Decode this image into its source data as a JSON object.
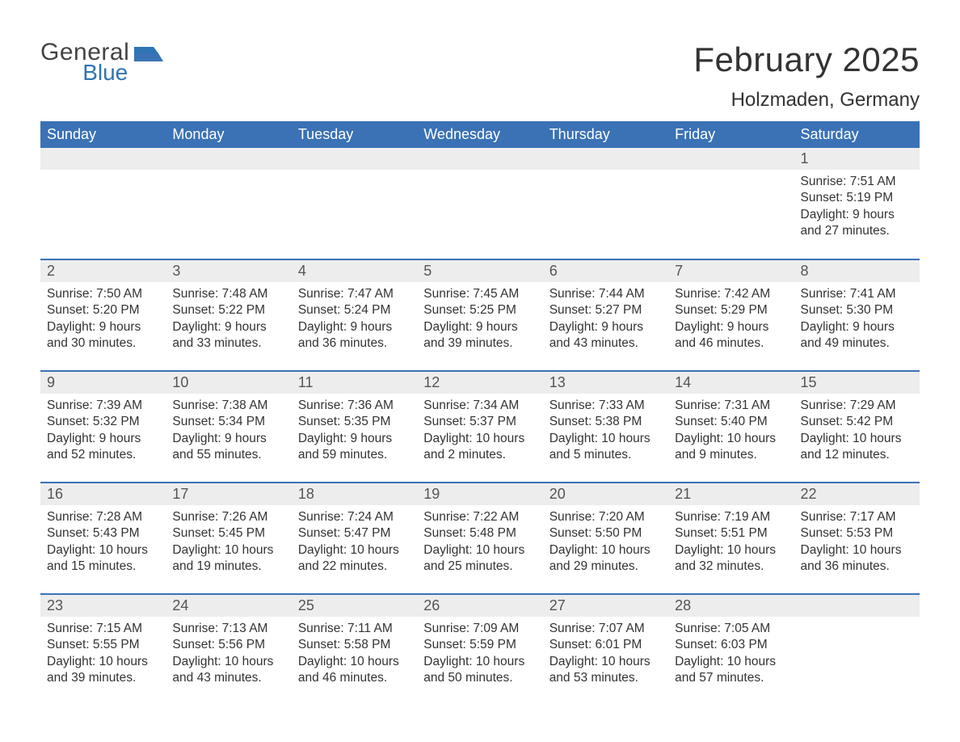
{
  "brand": {
    "word1": "General",
    "word2": "Blue",
    "color1": "#444444",
    "color2": "#2f74b5"
  },
  "title": "February 2025",
  "location": "Holzmaden, Germany",
  "colors": {
    "header_bg": "#3a72b5",
    "header_fg": "#ffffff",
    "daynum_bg": "#ededed",
    "daynum_fg": "#555555",
    "rule": "#3a72b5",
    "body_text": "#333333",
    "page_bg": "#ffffff"
  },
  "typography": {
    "title_fontsize": 42,
    "location_fontsize": 24,
    "weekday_fontsize": 18,
    "daynum_fontsize": 18,
    "body_fontsize": 15.5
  },
  "weekdays": [
    "Sunday",
    "Monday",
    "Tuesday",
    "Wednesday",
    "Thursday",
    "Friday",
    "Saturday"
  ],
  "weeks": [
    [
      null,
      null,
      null,
      null,
      null,
      null,
      {
        "n": "1",
        "lines": [
          "Sunrise: 7:51 AM",
          "Sunset: 5:19 PM",
          "Daylight: 9 hours",
          "and 27 minutes."
        ]
      }
    ],
    [
      {
        "n": "2",
        "lines": [
          "Sunrise: 7:50 AM",
          "Sunset: 5:20 PM",
          "Daylight: 9 hours",
          "and 30 minutes."
        ]
      },
      {
        "n": "3",
        "lines": [
          "Sunrise: 7:48 AM",
          "Sunset: 5:22 PM",
          "Daylight: 9 hours",
          "and 33 minutes."
        ]
      },
      {
        "n": "4",
        "lines": [
          "Sunrise: 7:47 AM",
          "Sunset: 5:24 PM",
          "Daylight: 9 hours",
          "and 36 minutes."
        ]
      },
      {
        "n": "5",
        "lines": [
          "Sunrise: 7:45 AM",
          "Sunset: 5:25 PM",
          "Daylight: 9 hours",
          "and 39 minutes."
        ]
      },
      {
        "n": "6",
        "lines": [
          "Sunrise: 7:44 AM",
          "Sunset: 5:27 PM",
          "Daylight: 9 hours",
          "and 43 minutes."
        ]
      },
      {
        "n": "7",
        "lines": [
          "Sunrise: 7:42 AM",
          "Sunset: 5:29 PM",
          "Daylight: 9 hours",
          "and 46 minutes."
        ]
      },
      {
        "n": "8",
        "lines": [
          "Sunrise: 7:41 AM",
          "Sunset: 5:30 PM",
          "Daylight: 9 hours",
          "and 49 minutes."
        ]
      }
    ],
    [
      {
        "n": "9",
        "lines": [
          "Sunrise: 7:39 AM",
          "Sunset: 5:32 PM",
          "Daylight: 9 hours",
          "and 52 minutes."
        ]
      },
      {
        "n": "10",
        "lines": [
          "Sunrise: 7:38 AM",
          "Sunset: 5:34 PM",
          "Daylight: 9 hours",
          "and 55 minutes."
        ]
      },
      {
        "n": "11",
        "lines": [
          "Sunrise: 7:36 AM",
          "Sunset: 5:35 PM",
          "Daylight: 9 hours",
          "and 59 minutes."
        ]
      },
      {
        "n": "12",
        "lines": [
          "Sunrise: 7:34 AM",
          "Sunset: 5:37 PM",
          "Daylight: 10 hours",
          "and 2 minutes."
        ]
      },
      {
        "n": "13",
        "lines": [
          "Sunrise: 7:33 AM",
          "Sunset: 5:38 PM",
          "Daylight: 10 hours",
          "and 5 minutes."
        ]
      },
      {
        "n": "14",
        "lines": [
          "Sunrise: 7:31 AM",
          "Sunset: 5:40 PM",
          "Daylight: 10 hours",
          "and 9 minutes."
        ]
      },
      {
        "n": "15",
        "lines": [
          "Sunrise: 7:29 AM",
          "Sunset: 5:42 PM",
          "Daylight: 10 hours",
          "and 12 minutes."
        ]
      }
    ],
    [
      {
        "n": "16",
        "lines": [
          "Sunrise: 7:28 AM",
          "Sunset: 5:43 PM",
          "Daylight: 10 hours",
          "and 15 minutes."
        ]
      },
      {
        "n": "17",
        "lines": [
          "Sunrise: 7:26 AM",
          "Sunset: 5:45 PM",
          "Daylight: 10 hours",
          "and 19 minutes."
        ]
      },
      {
        "n": "18",
        "lines": [
          "Sunrise: 7:24 AM",
          "Sunset: 5:47 PM",
          "Daylight: 10 hours",
          "and 22 minutes."
        ]
      },
      {
        "n": "19",
        "lines": [
          "Sunrise: 7:22 AM",
          "Sunset: 5:48 PM",
          "Daylight: 10 hours",
          "and 25 minutes."
        ]
      },
      {
        "n": "20",
        "lines": [
          "Sunrise: 7:20 AM",
          "Sunset: 5:50 PM",
          "Daylight: 10 hours",
          "and 29 minutes."
        ]
      },
      {
        "n": "21",
        "lines": [
          "Sunrise: 7:19 AM",
          "Sunset: 5:51 PM",
          "Daylight: 10 hours",
          "and 32 minutes."
        ]
      },
      {
        "n": "22",
        "lines": [
          "Sunrise: 7:17 AM",
          "Sunset: 5:53 PM",
          "Daylight: 10 hours",
          "and 36 minutes."
        ]
      }
    ],
    [
      {
        "n": "23",
        "lines": [
          "Sunrise: 7:15 AM",
          "Sunset: 5:55 PM",
          "Daylight: 10 hours",
          "and 39 minutes."
        ]
      },
      {
        "n": "24",
        "lines": [
          "Sunrise: 7:13 AM",
          "Sunset: 5:56 PM",
          "Daylight: 10 hours",
          "and 43 minutes."
        ]
      },
      {
        "n": "25",
        "lines": [
          "Sunrise: 7:11 AM",
          "Sunset: 5:58 PM",
          "Daylight: 10 hours",
          "and 46 minutes."
        ]
      },
      {
        "n": "26",
        "lines": [
          "Sunrise: 7:09 AM",
          "Sunset: 5:59 PM",
          "Daylight: 10 hours",
          "and 50 minutes."
        ]
      },
      {
        "n": "27",
        "lines": [
          "Sunrise: 7:07 AM",
          "Sunset: 6:01 PM",
          "Daylight: 10 hours",
          "and 53 minutes."
        ]
      },
      {
        "n": "28",
        "lines": [
          "Sunrise: 7:05 AM",
          "Sunset: 6:03 PM",
          "Daylight: 10 hours",
          "and 57 minutes."
        ]
      },
      null
    ]
  ]
}
